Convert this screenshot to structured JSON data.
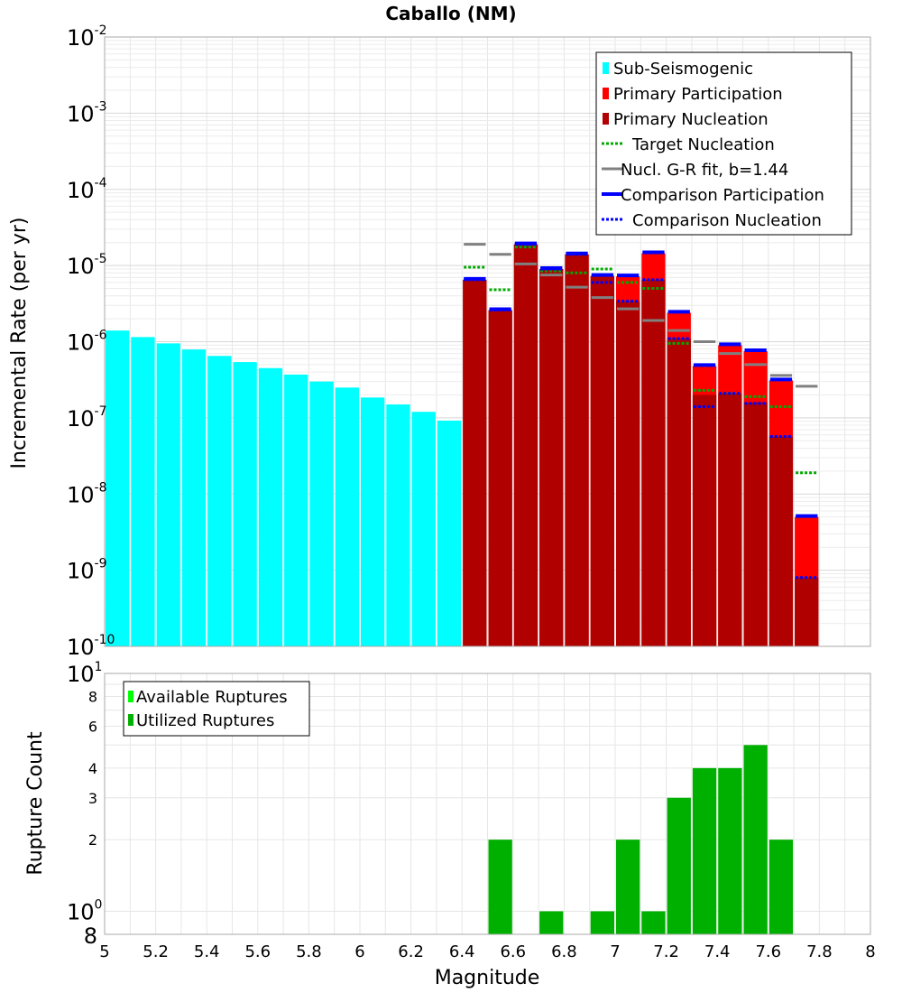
{
  "chart_data": [
    {
      "type": "bar",
      "title": "Caballo (NM)",
      "xlabel": "",
      "ylabel": "Incremental Rate (per yr)",
      "yscale": "log",
      "xlim": [
        5,
        8
      ],
      "ylim": [
        1e-10,
        0.01
      ],
      "bin_width": 0.1,
      "y_ticks": [
        {
          "base": "10",
          "exp": "-2",
          "value": 0.01
        },
        {
          "base": "10",
          "exp": "-3",
          "value": 0.001
        },
        {
          "base": "10",
          "exp": "-4",
          "value": 0.0001
        },
        {
          "base": "10",
          "exp": "-5",
          "value": 1e-05
        },
        {
          "base": "10",
          "exp": "-6",
          "value": 1e-06
        },
        {
          "base": "10",
          "exp": "-7",
          "value": 1e-07
        },
        {
          "base": "10",
          "exp": "-8",
          "value": 1e-08
        },
        {
          "base": "10",
          "exp": "-9",
          "value": 1e-09
        },
        {
          "base": "10",
          "exp": "-10",
          "value": 1e-10
        }
      ],
      "legend": [
        {
          "label": "Sub-Seismogenic",
          "style": "box",
          "color": "#00ffff"
        },
        {
          "label": "Primary Participation",
          "style": "box",
          "color": "#ff0000"
        },
        {
          "label": "Primary Nucleation",
          "style": "box",
          "color": "#b00000"
        },
        {
          "label": "Target Nucleation",
          "style": "dotted",
          "color": "#00aa00"
        },
        {
          "label": "Nucl. G-R fit, b=1.44",
          "style": "solid",
          "color": "#808080"
        },
        {
          "label": "Comparison Participation",
          "style": "solid-thick",
          "color": "#0000ff"
        },
        {
          "label": "Comparison Nucleation",
          "style": "dotted",
          "color": "#0000ff"
        }
      ],
      "series": [
        {
          "name": "Sub-Seismogenic",
          "color": "#00ffff",
          "x": [
            5.05,
            5.15,
            5.25,
            5.35,
            5.45,
            5.55,
            5.65,
            5.75,
            5.85,
            5.95,
            6.05,
            6.15,
            6.25,
            6.35
          ],
          "values": [
            1.4e-06,
            1.15e-06,
            9.5e-07,
            7.9e-07,
            6.5e-07,
            5.4e-07,
            4.5e-07,
            3.7e-07,
            3e-07,
            2.5e-07,
            1.85e-07,
            1.5e-07,
            1.2e-07,
            9.2e-08
          ]
        },
        {
          "name": "Primary Participation",
          "color": "#ff0000",
          "x": [
            6.45,
            6.55,
            6.65,
            6.75,
            6.85,
            6.95,
            7.05,
            7.15,
            7.25,
            7.35,
            7.45,
            7.55,
            7.65,
            7.75
          ],
          "values": [
            6.5e-06,
            2.6e-06,
            1.9e-05,
            9e-06,
            1.4e-05,
            7.3e-06,
            7.2e-06,
            1.45e-05,
            2.4e-06,
            4.8e-07,
            9e-07,
            7.5e-07,
            3.1e-07,
            5e-09
          ]
        },
        {
          "name": "Primary Nucleation",
          "color": "#b00000",
          "x": [
            6.45,
            6.55,
            6.65,
            6.75,
            6.85,
            6.95,
            7.05,
            7.15,
            7.25,
            7.35,
            7.45,
            7.55,
            7.65,
            7.75
          ],
          "values": [
            6.5e-06,
            2.6e-06,
            1.9e-05,
            9e-06,
            1.4e-05,
            7.3e-06,
            3.4e-06,
            6.5e-06,
            1.1e-06,
            2e-07,
            2.1e-07,
            1.6e-07,
            5.7e-08,
            8e-10
          ]
        },
        {
          "name": "Target Nucleation",
          "color": "#00aa00",
          "style": "dotted",
          "x": [
            6.45,
            6.55,
            6.65,
            6.75,
            6.85,
            6.95,
            7.05,
            7.15,
            7.25,
            7.35,
            7.45,
            7.55,
            7.65,
            7.75
          ],
          "values": [
            9.5e-06,
            4.8e-06,
            1.75e-05,
            8.5e-06,
            8e-06,
            9e-06,
            6e-06,
            5e-06,
            9.5e-07,
            2.3e-07,
            2.1e-07,
            1.9e-07,
            1.4e-07,
            1.9e-08
          ]
        },
        {
          "name": "Nucl. G-R fit, b=1.44",
          "color": "#808080",
          "style": "solid",
          "x": [
            6.45,
            6.55,
            6.65,
            6.75,
            6.85,
            6.95,
            7.05,
            7.15,
            7.25,
            7.35,
            7.45,
            7.55,
            7.65,
            7.75
          ],
          "values": [
            1.9e-05,
            1.4e-05,
            1.05e-05,
            7.5e-06,
            5.2e-06,
            3.8e-06,
            2.7e-06,
            1.9e-06,
            1.4e-06,
            1e-06,
            7e-07,
            5e-07,
            3.6e-07,
            2.6e-07
          ]
        },
        {
          "name": "Comparison Participation",
          "color": "#0000ff",
          "style": "solid-thick",
          "x": [
            6.45,
            6.55,
            6.65,
            6.75,
            6.85,
            6.95,
            7.05,
            7.15,
            7.25,
            7.35,
            7.45,
            7.55,
            7.65,
            7.75
          ],
          "values": [
            6.5e-06,
            2.6e-06,
            1.9e-05,
            9e-06,
            1.4e-05,
            7.3e-06,
            7.2e-06,
            1.45e-05,
            2.4e-06,
            4.8e-07,
            9e-07,
            7.5e-07,
            3.1e-07,
            5e-09
          ]
        },
        {
          "name": "Comparison Nucleation",
          "color": "#0000ff",
          "style": "dotted",
          "x": [
            6.45,
            6.55,
            6.65,
            6.75,
            6.85,
            6.95,
            7.05,
            7.15,
            7.25,
            7.35,
            7.45,
            7.55,
            7.65,
            7.75
          ],
          "values": [
            6.5e-06,
            2.6e-06,
            1.9e-05,
            9e-06,
            1.4e-05,
            6e-06,
            3.4e-06,
            6.5e-06,
            1.1e-06,
            1.4e-07,
            2.1e-07,
            1.55e-07,
            5.7e-08,
            8e-10
          ]
        }
      ]
    },
    {
      "type": "bar",
      "title": "",
      "xlabel": "Magnitude",
      "ylabel": "Rupture Count",
      "yscale": "log",
      "xlim": [
        5,
        8
      ],
      "ylim": [
        0.8,
        10
      ],
      "bin_width": 0.1,
      "x_ticks": [
        "5",
        "5.2",
        "5.4",
        "5.6",
        "5.8",
        "6",
        "6.2",
        "6.4",
        "6.6",
        "6.8",
        "7",
        "7.2",
        "7.4",
        "7.6",
        "7.8",
        "8"
      ],
      "y_ticks": [
        {
          "label": "8",
          "value": 8,
          "kind": "minor"
        },
        {
          "label": "6",
          "value": 6,
          "kind": "minor"
        },
        {
          "label": "4",
          "value": 4,
          "kind": "minor"
        },
        {
          "label": "3",
          "value": 3,
          "kind": "minor"
        },
        {
          "label": "2",
          "value": 2,
          "kind": "minor"
        }
      ],
      "y_major_ticks": [
        {
          "base": "10",
          "exp": "1",
          "value": 10
        },
        {
          "base": "10",
          "exp": "0",
          "value": 1
        }
      ],
      "y_bottom_label": "8",
      "legend": [
        {
          "label": "Available Ruptures",
          "style": "box",
          "color": "#00ff00"
        },
        {
          "label": "Utilized Ruptures",
          "style": "box",
          "color": "#00b000"
        }
      ],
      "series": [
        {
          "name": "Utilized Ruptures",
          "color": "#00b000",
          "x": [
            6.55,
            6.75,
            6.95,
            7.05,
            7.15,
            7.25,
            7.35,
            7.45,
            7.55,
            7.65
          ],
          "values": [
            2,
            1,
            1,
            2,
            1,
            3,
            4,
            4,
            5,
            2
          ]
        }
      ]
    }
  ]
}
